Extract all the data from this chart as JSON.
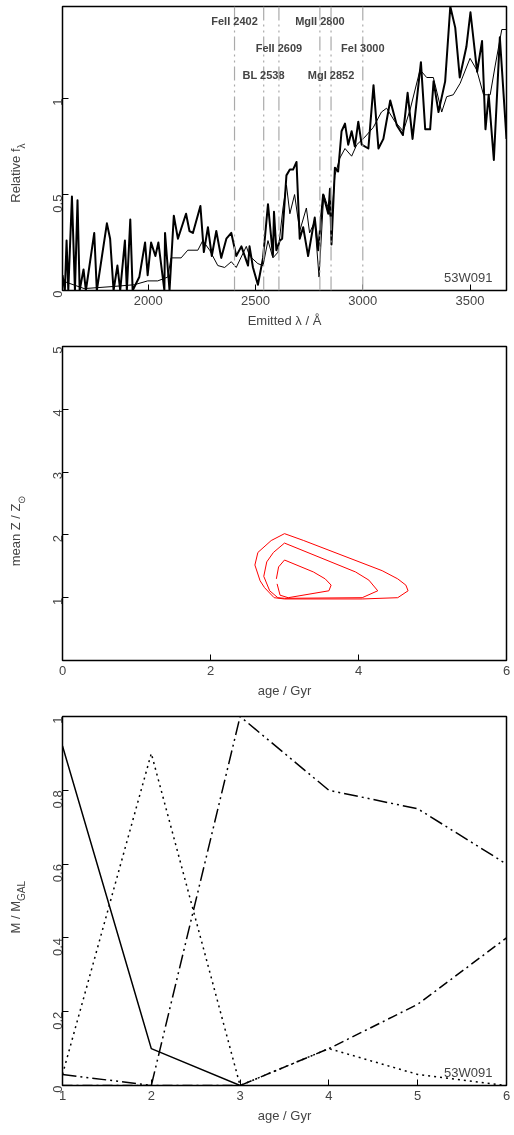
{
  "chart_data": [
    {
      "type": "line",
      "xlabel": "Emitted λ / Å",
      "ylabel": "Relative f$_{λ}$",
      "xlim": [
        1600,
        3670
      ],
      "ylim": [
        0,
        1.48
      ],
      "xticks": [
        2000,
        2500,
        3000,
        3500
      ],
      "yticks": [
        0,
        0.5,
        1
      ],
      "series": [
        {
          "color": "#000000",
          "x": [
            1600,
            1611,
            1619,
            1627,
            1644,
            1658,
            1670,
            1680,
            1698,
            1709,
            1748,
            1760,
            1807,
            1822,
            1838,
            1856,
            1869,
            1891,
            1900,
            1916,
            1927,
            1958,
            1985,
            1997,
            2013,
            2033,
            2047,
            2075,
            2078,
            2099,
            2119,
            2138,
            2176,
            2192,
            2208,
            2243,
            2259,
            2278,
            2296,
            2317,
            2340,
            2364,
            2387,
            2410,
            2434,
            2465,
            2472,
            2488,
            2511,
            2535,
            2558,
            2581,
            2586,
            2597,
            2613,
            2624,
            2644,
            2660,
            2675,
            2691,
            2706,
            2722,
            2745,
            2776,
            2792,
            2815,
            2839,
            2847,
            2854,
            2870,
            2885,
            2901,
            2917,
            2932,
            2948,
            2963,
            2979,
            2995,
            3026,
            3050,
            3073,
            3096,
            3128,
            3159,
            3187,
            3209,
            3232,
            3271,
            3291,
            3314,
            3330,
            3353,
            3384,
            3408,
            3431,
            3452,
            3483,
            3502,
            3533,
            3556,
            3572,
            3587,
            3611,
            3639,
            3670
          ],
          "values": [
            0.08,
            0,
            0.26,
            0,
            0.49,
            0,
            0.47,
            0,
            0.11,
            0,
            0.3,
            0,
            0.35,
            0.27,
            0,
            0.13,
            0,
            0.26,
            0,
            0.37,
            0,
            0.07,
            0.25,
            0.08,
            0.25,
            0.18,
            0.25,
            0,
            0.3,
            0,
            0.39,
            0.27,
            0.4,
            0.31,
            0.3,
            0.44,
            0.2,
            0.33,
            0.18,
            0.31,
            0.17,
            0.27,
            0.3,
            0.18,
            0.23,
            0.13,
            0.23,
            0.12,
            0.03,
            0.17,
            0.45,
            0.18,
            0.41,
            0.21,
            0.26,
            0.27,
            0.6,
            0.63,
            0.63,
            0.67,
            0.27,
            0.33,
            0.18,
            0.38,
            0.21,
            0.5,
            0.4,
            0.53,
            0.24,
            0.64,
            0.62,
            0.83,
            0.87,
            0.76,
            0.83,
            0.75,
            0.88,
            0.76,
            0.74,
            1.07,
            0.74,
            0.79,
            0.99,
            0.86,
            0.81,
            1.03,
            0.79,
            1.19,
            0.84,
            0.84,
            1.09,
            0.93,
            1.09,
            1.48,
            1.37,
            1.11,
            1.27,
            1.45,
            1.14,
            1.3,
            0.84,
            1.02,
            0.68,
            1.32,
            0.79
          ]
        },
        {
          "color": "#000000",
          "x": [
            1600,
            1701,
            1826,
            1935,
            1997,
            2044,
            2091,
            2106,
            2153,
            2184,
            2231,
            2254,
            2286,
            2324,
            2356,
            2387,
            2410,
            2457,
            2472,
            2511,
            2535,
            2558,
            2581,
            2605,
            2628,
            2644,
            2660,
            2682,
            2706,
            2737,
            2752,
            2776,
            2796,
            2818,
            2839,
            2854,
            2870,
            2893,
            2917,
            2948,
            2972,
            3010,
            3049,
            3087,
            3111,
            3150,
            3189,
            3220,
            3267,
            3298,
            3329,
            3368,
            3391,
            3422,
            3454,
            3500,
            3531,
            3563,
            3594,
            3617,
            3648,
            3670
          ],
          "values": [
            0.05,
            0.01,
            0.02,
            0.03,
            0.05,
            0.05,
            0.07,
            0.17,
            0.17,
            0.21,
            0.21,
            0.26,
            0.21,
            0.13,
            0.12,
            0.15,
            0.12,
            0.23,
            0.18,
            0.14,
            0.13,
            0.26,
            0.17,
            0.2,
            0.43,
            0.55,
            0.4,
            0.5,
            0.31,
            0.43,
            0.3,
            0.36,
            0.07,
            0.5,
            0.43,
            0.36,
            0.6,
            0.69,
            0.74,
            0.7,
            0.76,
            0.8,
            0.85,
            0.93,
            0.95,
            0.88,
            0.83,
            0.94,
            1.15,
            1.11,
            1.11,
            0.93,
            1.01,
            1.02,
            1.08,
            1.21,
            1.15,
            1.02,
            1.02,
            1.17,
            1.36,
            1.36
          ]
        }
      ],
      "ref_lines": [
        {
          "axis": "x",
          "value": 2402,
          "label": "FeII 2402",
          "color": "#aaaaaa",
          "line_style": "dashed"
        },
        {
          "axis": "x",
          "value": 2538,
          "label": "BL 2538",
          "color": "#aaaaaa",
          "line_style": "dashed"
        },
        {
          "axis": "x",
          "value": 2609,
          "label": "FeII 2609",
          "color": "#aaaaaa",
          "line_style": "dashed"
        },
        {
          "axis": "x",
          "value": 2800,
          "label": "MgII 2800",
          "color": "#aaaaaa",
          "line_style": "dashed"
        },
        {
          "axis": "x",
          "value": 2852,
          "label": "MgI 2852",
          "color": "#aaaaaa",
          "line_style": "dashed"
        },
        {
          "axis": "x",
          "value": 3000,
          "label": "FeI 3000",
          "color": "#aaaaaa",
          "line_style": "dashed"
        }
      ],
      "annotations": [
        "53W091"
      ]
    },
    {
      "type": "line",
      "xlabel": "age / Gyr",
      "ylabel": "mean Z / Z$_{⊙}$",
      "xlim": [
        0,
        6
      ],
      "ylim": [
        0,
        5
      ],
      "xticks": [
        0,
        2,
        4,
        6
      ],
      "yticks": [
        1,
        2,
        3,
        4,
        5
      ],
      "series": [
        {
          "color": "#ff0000",
          "x": [
            2.6,
            2.64,
            2.82,
            3.0,
            3.26,
            4.32,
            4.53,
            4.64,
            4.67
          ],
          "values": [
            1.52,
            1.72,
            1.91,
            2.02,
            1.91,
            1.43,
            1.3,
            1.2,
            1.11
          ]
        },
        {
          "color": "#ff0000",
          "x": [
            2.6,
            2.67,
            2.73,
            2.86,
            3.0,
            4.05,
            4.53,
            4.67
          ],
          "values": [
            1.52,
            1.27,
            1.16,
            1.0,
            0.98,
            0.98,
            1.0,
            1.11
          ]
        },
        {
          "color": "#ff0000",
          "x": [
            2.72,
            2.76,
            2.85,
            3.0,
            3.96,
            4.14,
            4.26
          ],
          "values": [
            1.34,
            1.57,
            1.72,
            1.87,
            1.41,
            1.28,
            1.11
          ]
        },
        {
          "color": "#ff0000",
          "x": [
            2.72,
            2.8,
            2.91,
            3.0,
            4.05,
            4.26
          ],
          "values": [
            1.34,
            1.11,
            1.0,
            0.99,
            1.0,
            1.11
          ]
        },
        {
          "color": "#ff0000",
          "x": [
            2.89,
            2.92,
            3.0,
            3.39,
            3.55,
            3.63
          ],
          "values": [
            1.3,
            1.49,
            1.6,
            1.41,
            1.3,
            1.2
          ]
        },
        {
          "color": "#ff0000",
          "x": [
            2.9,
            2.94,
            3.05,
            3.6,
            3.63
          ],
          "values": [
            1.22,
            1.04,
            1.0,
            1.11,
            1.2
          ]
        }
      ]
    },
    {
      "type": "line",
      "xlabel": "age / Gyr",
      "ylabel": "M / M$_{GAL}$",
      "xlim": [
        1,
        6
      ],
      "ylim": [
        0,
        1
      ],
      "xticks": [
        1,
        2,
        3,
        4,
        5,
        6
      ],
      "yticks": [
        0,
        0.2,
        0.4,
        0.6,
        0.8,
        1
      ],
      "x": [
        1,
        2,
        3,
        4,
        5,
        6
      ],
      "series": [
        {
          "color": "#000000",
          "line_style": "solid",
          "values": [
            0.92,
            0.1,
            0.0,
            null,
            null,
            null
          ]
        },
        {
          "color": "#000000",
          "line_style": "dotted",
          "values": [
            0.03,
            0.9,
            0.0,
            0.1,
            0.03,
            0.0
          ]
        },
        {
          "color": "#000000",
          "line_style": "dashed",
          "values": [
            0.03,
            0.0,
            1.0,
            0.8,
            0.75,
            0.6
          ]
        },
        {
          "color": "#000000",
          "line_style": "dashdot",
          "values": [
            0.0,
            0.0,
            0.0,
            0.1,
            0.22,
            0.4
          ]
        }
      ],
      "annotations": [
        "53W091"
      ]
    }
  ]
}
